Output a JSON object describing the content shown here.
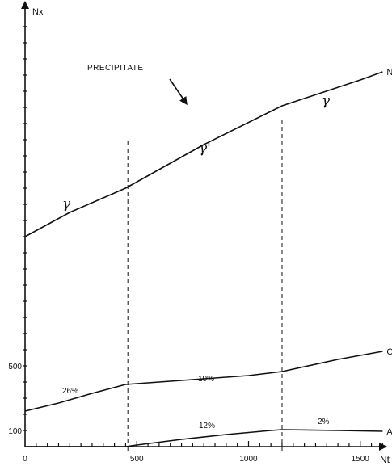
{
  "chart_data": {
    "type": "line",
    "xlabel": "Nt",
    "ylabel": "Nx",
    "xlim": [
      0,
      1650
    ],
    "ylim": [
      0,
      2350
    ],
    "x_ticks": [
      0,
      500,
      1000,
      1500
    ],
    "x_tick_labels": [
      "0",
      "500",
      "1000",
      "1500"
    ],
    "y_ticks": [
      100,
      500
    ],
    "y_tick_labels": [
      "100",
      "500"
    ],
    "grid": false,
    "legend": "none",
    "series": [
      {
        "name": "Ni",
        "x": [
          0,
          200,
          450,
          800,
          1150,
          1500,
          1600
        ],
        "y": [
          1300,
          1450,
          1600,
          1870,
          2110,
          2270,
          2320
        ]
      },
      {
        "name": "Cr",
        "x": [
          0,
          150,
          300,
          450,
          700,
          1000,
          1150,
          1400,
          1600
        ],
        "y": [
          220,
          270,
          330,
          385,
          410,
          440,
          465,
          540,
          590
        ]
      },
      {
        "name": "Al",
        "x": [
          0,
          450,
          500,
          700,
          900,
          1100,
          1150,
          1400,
          1600
        ],
        "y": [
          0,
          0,
          10,
          45,
          75,
          100,
          105,
          100,
          95
        ]
      }
    ],
    "phase_boundaries_x": [
      460,
      1150
    ],
    "annotations": {
      "precipitate": "PRECIPITATE",
      "gamma_left": "γ",
      "gamma_prime": "γ'",
      "gamma_right": "γ",
      "cr_pct_1": "26%",
      "cr_pct_2": "10%",
      "al_pct_1": "12%",
      "al_pct_2": "2%"
    }
  }
}
